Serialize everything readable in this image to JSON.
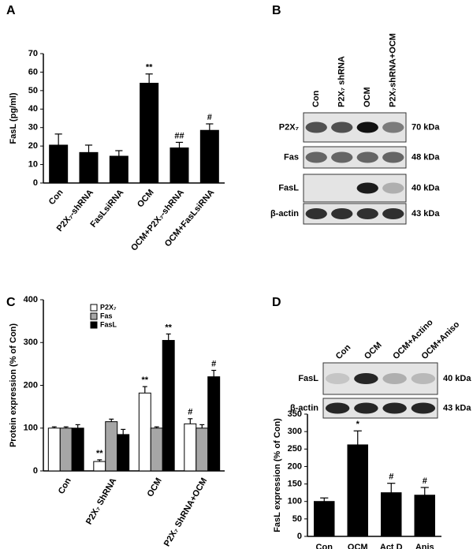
{
  "panel_labels": [
    "A",
    "B",
    "C",
    "D"
  ],
  "chart_data": [
    {
      "type": "bar",
      "ylabel": "FasL (pg/ml)",
      "categories": [
        "Con",
        "P2X₇-shRNA",
        "FasLsiRNA",
        "OCM",
        "OCM+P2X₇-shRNA",
        "OCM+FasLsiRNA"
      ],
      "values": [
        20.5,
        16.5,
        14.5,
        54,
        19,
        28.5
      ],
      "errors": [
        6,
        4,
        3,
        5,
        3,
        3.5
      ],
      "annotations": [
        null,
        null,
        null,
        "**",
        "##",
        "#"
      ],
      "color": "#000000",
      "ylim": [
        0,
        70
      ],
      "yticks": [
        0,
        10,
        20,
        30,
        40,
        50,
        60,
        70
      ]
    },
    {
      "type": "bar",
      "ylabel": "Protein expression (% of Con)",
      "categories": [
        "Con",
        "P2X₇ ShRNA",
        "OCM",
        "P2X₇ ShRNA+OCM"
      ],
      "series": [
        {
          "name": "P2X₇",
          "color": "#ffffff",
          "values": [
            100,
            22,
            182,
            110
          ],
          "errors": [
            3,
            4,
            15,
            12
          ],
          "annotations": [
            null,
            "**",
            "**",
            "#"
          ]
        },
        {
          "name": "Fas",
          "color": "#a6a6a6",
          "values": [
            100,
            115,
            100,
            100
          ],
          "errors": [
            3,
            6,
            3,
            8
          ],
          "annotations": [
            null,
            null,
            null,
            null
          ]
        },
        {
          "name": "FasL",
          "color": "#000000",
          "values": [
            100,
            85,
            305,
            220
          ],
          "errors": [
            8,
            12,
            15,
            15
          ],
          "annotations": [
            null,
            null,
            "**",
            "#"
          ]
        }
      ],
      "ylim": [
        0,
        400
      ],
      "yticks": [
        0,
        100,
        200,
        300,
        400
      ]
    },
    {
      "type": "bar",
      "ylabel": "FasL expression (% of Con)",
      "categories": [
        "Con",
        "OCM",
        "Act D",
        "Anis"
      ],
      "values": [
        100,
        262,
        125,
        118
      ],
      "errors": [
        10,
        40,
        27,
        22
      ],
      "annotations": [
        null,
        "*",
        "#",
        "#"
      ],
      "color": "#000000",
      "ylim": [
        0,
        350
      ],
      "yticks": [
        0,
        50,
        100,
        150,
        200,
        250,
        300,
        350
      ]
    }
  ],
  "blots": [
    {
      "lanes": [
        "Con",
        "P2X₇ shRNA",
        "OCM",
        "P2X₇shRNA+OCM"
      ],
      "rows": [
        {
          "label": "P2X₇",
          "size": "70 kDa"
        },
        {
          "label": "Fas",
          "size": "48 kDa"
        },
        {
          "label": "FasL",
          "size": "40 kDa"
        },
        {
          "label": "β-actin",
          "size": "43 kDa"
        }
      ]
    },
    {
      "lanes": [
        "Con",
        "OCM",
        "OCM+Actino",
        "OCM+Aniso"
      ],
      "rows": [
        {
          "label": "FasL",
          "size": "40 kDa"
        },
        {
          "label": "β-actin",
          "size": "43 kDa"
        }
      ]
    }
  ]
}
